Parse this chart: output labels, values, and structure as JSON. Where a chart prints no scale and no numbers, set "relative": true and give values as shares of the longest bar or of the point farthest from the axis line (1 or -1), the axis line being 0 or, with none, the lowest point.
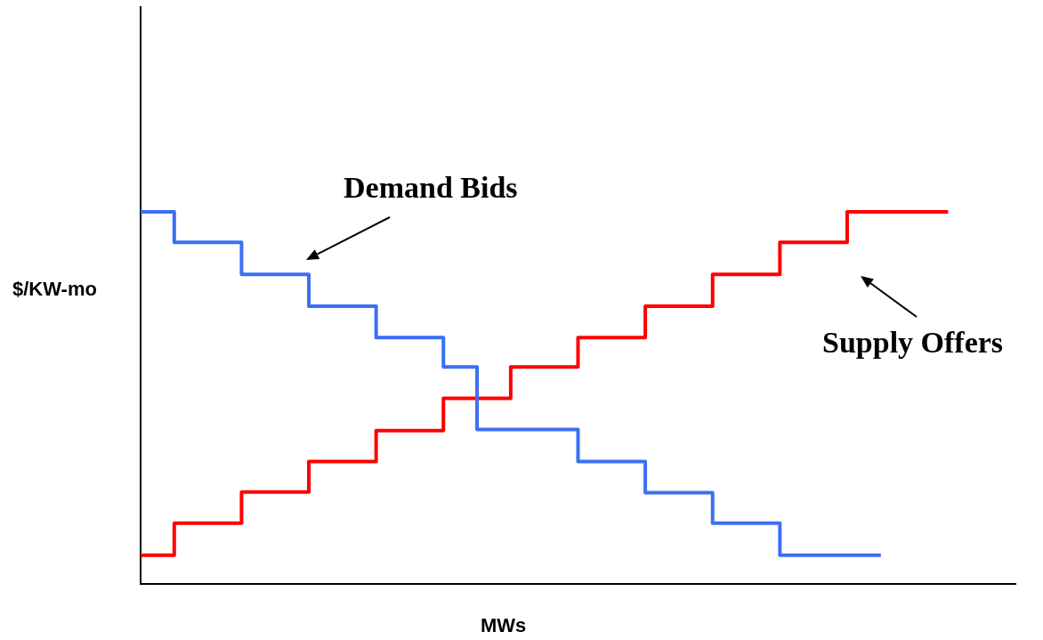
{
  "chart_data": {
    "type": "step",
    "relative": true,
    "xlabel": "MWs",
    "ylabel": "$/KW-mo",
    "categories": [
      null,
      null,
      null,
      null,
      null,
      null,
      null,
      null,
      null,
      null,
      null,
      null,
      null,
      null,
      null,
      null,
      null,
      null,
      null,
      null,
      null,
      null,
      null,
      null,
      null
    ],
    "series": [
      {
        "color": "#3b6ff5",
        "values": [
          1.0,
          1.0,
          0.918,
          0.918,
          0.832,
          0.832,
          0.746,
          0.746,
          0.662,
          0.662,
          0.583,
          0.415,
          0.415,
          0.415,
          0.329,
          0.329,
          0.245,
          0.245,
          0.163,
          0.163,
          0.077,
          0.077,
          0.077,
          null,
          null
        ]
      },
      {
        "color": "#ff0000",
        "values": [
          0.077,
          0.077,
          0.163,
          0.163,
          0.247,
          0.247,
          0.329,
          0.329,
          0.412,
          0.412,
          0.499,
          0.499,
          0.583,
          0.583,
          0.662,
          0.662,
          0.746,
          0.746,
          0.832,
          0.832,
          0.918,
          0.918,
          1.0,
          1.0,
          1.0
        ]
      }
    ],
    "annotations": [
      "Demand Bids",
      "Supply Offers"
    ],
    "grid": false,
    "legend": false,
    "marker": "none",
    "line_style": "solid"
  }
}
